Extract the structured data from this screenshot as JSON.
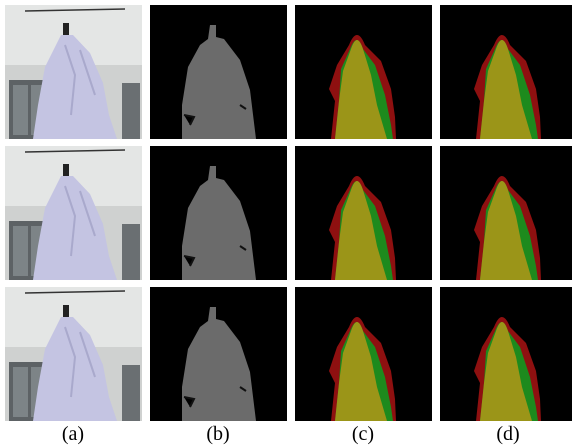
{
  "caption_labels": [
    "(a)",
    "(b)",
    "(c)",
    "(d)"
  ]
}
